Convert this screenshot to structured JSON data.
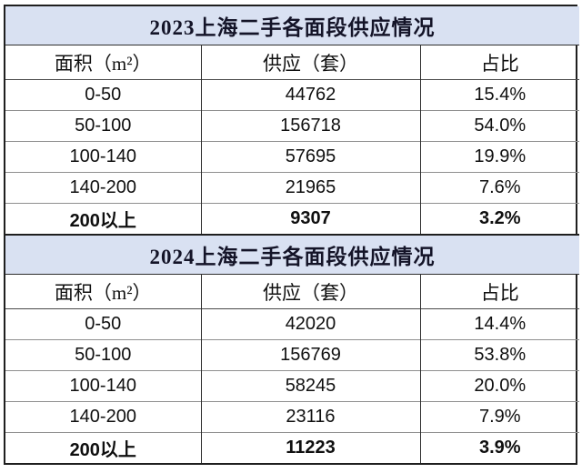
{
  "chart_data": [
    {
      "type": "table",
      "title": "2023上海二手各面段供应情况",
      "columns": [
        "面积（m²）",
        "供应（套）",
        "占比"
      ],
      "rows": [
        [
          "0-50",
          44762,
          "15.4%"
        ],
        [
          "50-100",
          156718,
          "54.0%"
        ],
        [
          "100-140",
          57695,
          "19.9%"
        ],
        [
          "140-200",
          21965,
          "7.6%"
        ],
        [
          "200以上",
          9307,
          "3.2%"
        ]
      ]
    },
    {
      "type": "table",
      "title": "2024上海二手各面段供应情况",
      "columns": [
        "面积（m²）",
        "供应（套）",
        "占比"
      ],
      "rows": [
        [
          "0-50",
          42020,
          "14.4%"
        ],
        [
          "50-100",
          156769,
          "53.8%"
        ],
        [
          "100-140",
          58245,
          "20.0%"
        ],
        [
          "140-200",
          23116,
          "7.9%"
        ],
        [
          "200以上",
          11223,
          "3.9%"
        ]
      ]
    }
  ],
  "style": {
    "title_bg": "#d9e1f2",
    "title_text_color": "#141428",
    "border_color": "#1f1f1f",
    "grid_color": "#8f8f8f"
  }
}
